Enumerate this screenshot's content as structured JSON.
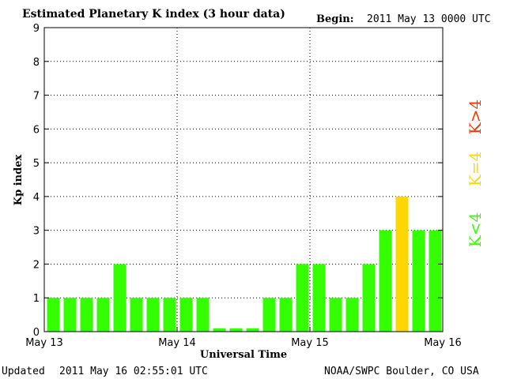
{
  "header": {
    "title": "Estimated Planetary K index (3 hour data)",
    "begin_label": "Begin:",
    "begin_value": "2011 May 13 0000 UTC"
  },
  "footer": {
    "updated_label": "Updated",
    "updated_value": "2011 May 16 02:55:01 UTC",
    "source": "NOAA/SWPC Boulder, CO USA"
  },
  "legend": [
    {
      "label": "K>4",
      "color": "#ff3300"
    },
    {
      "label": "K=4",
      "color": "#ffd700"
    },
    {
      "label": "K<4",
      "color": "#33ff00"
    }
  ],
  "chart_data": {
    "type": "bar",
    "title": "Estimated Planetary K index (3 hour data)",
    "xlabel": "Universal Time",
    "ylabel": "Kp index",
    "ylim": [
      0,
      9
    ],
    "yticks": [
      "0",
      "1",
      "2",
      "3",
      "4",
      "5",
      "6",
      "7",
      "8",
      "9"
    ],
    "xticks": [
      "May 13",
      "May 14",
      "May 15",
      "May 16"
    ],
    "grid": true,
    "values": [
      1,
      1,
      1,
      1,
      2,
      1,
      1,
      1,
      1,
      1,
      0.1,
      0.1,
      0.1,
      1,
      1,
      2,
      2,
      1,
      1,
      2,
      3,
      4,
      3,
      3
    ],
    "colors": {
      "below_4": "#33ff00",
      "equal_4": "#ffd700",
      "above_4": "#ff3300"
    }
  }
}
